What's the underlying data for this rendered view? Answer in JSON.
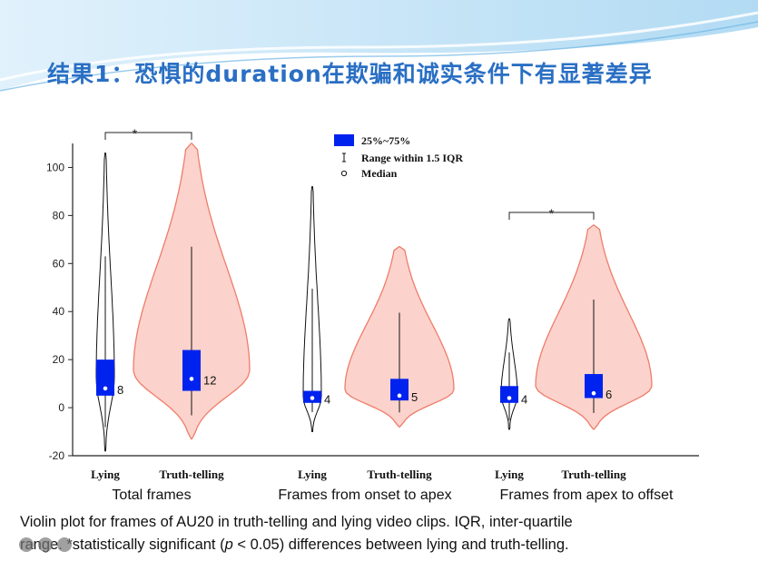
{
  "slide": {
    "title": "结果1：恐惧的duration在欺骗和诚实条件下有显著差异",
    "caption_line1": "Violin plot for frames of AU20 in truth-telling and lying video clips. IQR, inter-quartile",
    "caption_line2_prefix": "range. *statistically significant (",
    "caption_line2_var": "p",
    "caption_line2_suffix": " < 0.05) differences between lying and truth-telling.",
    "colors": {
      "title": "#2a6fc4",
      "lying_violin": "#ffffff",
      "truth_violin": "#fbd3cc",
      "truth_outline": "#f07c6a",
      "box": "#0022ee",
      "wave": "#b7dcf3"
    }
  },
  "chart_data": {
    "type": "violin",
    "ylim": [
      -20,
      110
    ],
    "yticks": [
      -20,
      0,
      20,
      40,
      60,
      80,
      100
    ],
    "legend": {
      "box_label": "25%~75%",
      "range_label": "Range within 1.5 IQR",
      "median_label": "Median"
    },
    "significance_marker": "*",
    "groups": [
      {
        "name": "Total frames",
        "significant": true,
        "violins": [
          {
            "category": "Lying",
            "q1": 5,
            "q3": 20,
            "median": 8,
            "min": -18,
            "max": 106,
            "median_label": "8"
          },
          {
            "category": "Truth-telling",
            "q1": 7,
            "q3": 24,
            "median": 12,
            "min": -13,
            "max": 110,
            "median_label": "12"
          }
        ]
      },
      {
        "name": "Frames from onset to apex",
        "significant": false,
        "violins": [
          {
            "category": "Lying",
            "q1": 2,
            "q3": 7,
            "median": 4,
            "min": -10,
            "max": 92,
            "median_label": "4"
          },
          {
            "category": "Truth-telling",
            "q1": 3,
            "q3": 12,
            "median": 5,
            "min": -8,
            "max": 67,
            "median_label": "5"
          }
        ]
      },
      {
        "name": "Frames from apex to offset",
        "significant": true,
        "violins": [
          {
            "category": "Lying",
            "q1": 2,
            "q3": 9,
            "median": 4,
            "min": -9,
            "max": 37,
            "median_label": "4"
          },
          {
            "category": "Truth-telling",
            "q1": 4,
            "q3": 14,
            "median": 6,
            "min": -9,
            "max": 76,
            "median_label": "6"
          }
        ]
      }
    ]
  }
}
